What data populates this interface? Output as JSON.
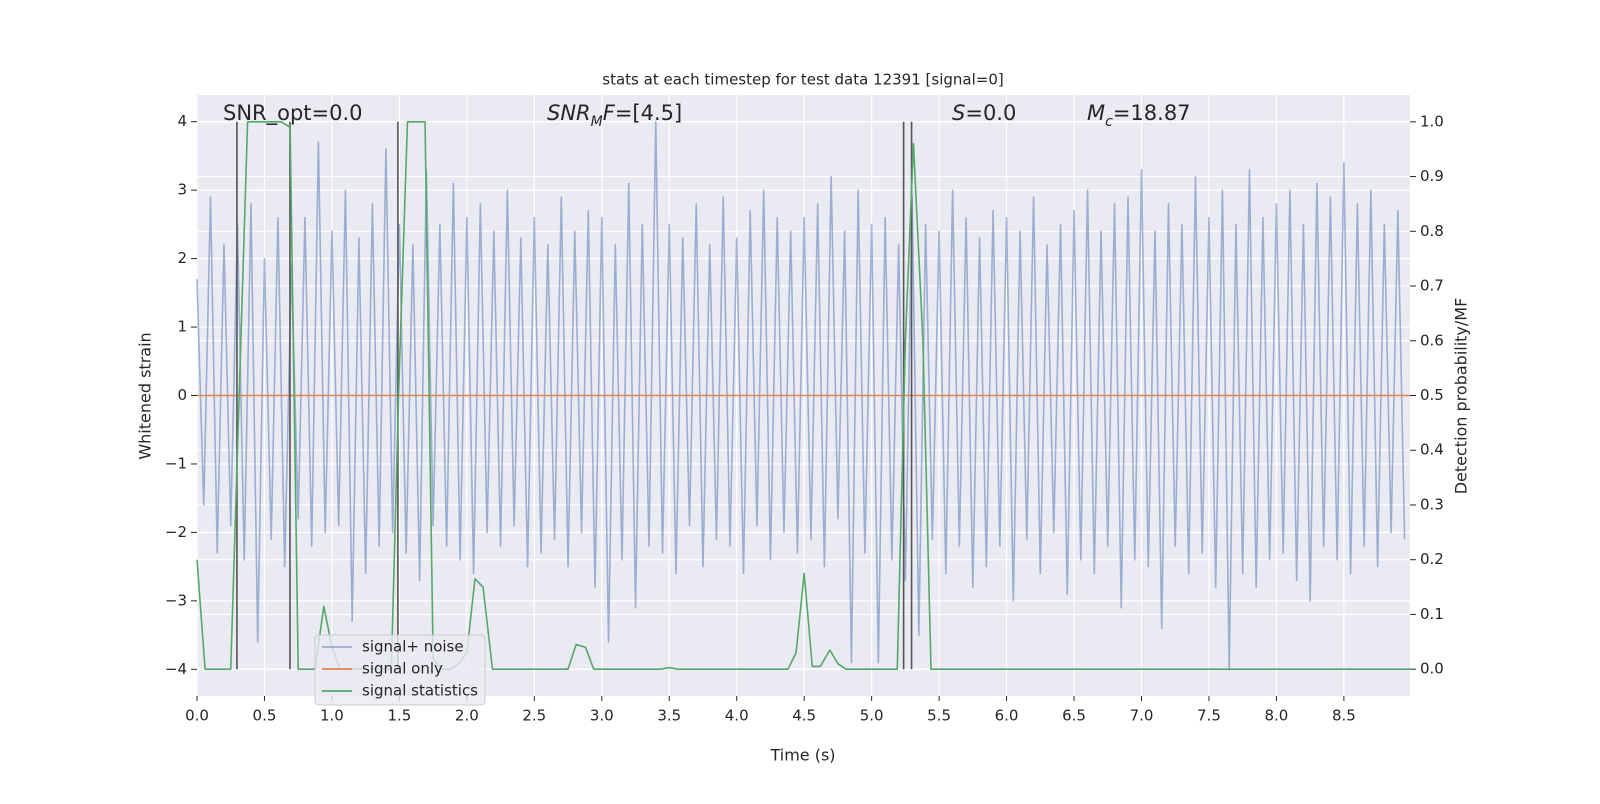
{
  "chart_data": {
    "type": "line",
    "title": "stats at each timestep for test data 12391 [signal=0]",
    "xlabel": "Time (s)",
    "ylabel": "Whitened strain",
    "y2label": "Detection probability/MF",
    "xlim": [
      0,
      8.99
    ],
    "ylim": [
      -4.39,
      4.39
    ],
    "y2lim": [
      -0.049,
      1.049
    ],
    "xticks": [
      {
        "value": 0,
        "label": "0.0"
      },
      0.5,
      {
        "value": 1,
        "label": "1.0"
      },
      1.5,
      {
        "value": 2,
        "label": "2.0"
      },
      2.5,
      {
        "value": 3,
        "label": "3.0"
      },
      3.5,
      {
        "value": 4,
        "label": "4.0"
      },
      4.5,
      {
        "value": 5,
        "label": "5.0"
      },
      5.5,
      {
        "value": 6,
        "label": "6.0"
      },
      6.5,
      {
        "value": 7,
        "label": "7.0"
      },
      7.5,
      {
        "value": 8,
        "label": "8.0"
      },
      8.5
    ],
    "yticks": [
      {
        "value": -4,
        "label": "−4"
      },
      {
        "value": -3,
        "label": "−3"
      },
      {
        "value": -2,
        "label": "−2"
      },
      {
        "value": -1,
        "label": "−1"
      },
      0,
      1,
      2,
      3,
      4
    ],
    "y2ticks": [
      {
        "value": 0,
        "label": "0.0"
      },
      0.1,
      0.2,
      0.3,
      0.4,
      0.5,
      0.6,
      0.7,
      0.8,
      0.9,
      {
        "value": 1,
        "label": "1.0"
      }
    ],
    "grid": true,
    "series": [
      {
        "name": "signal+ noise",
        "color": "#4c72b0",
        "alpha": 0.5,
        "x": [
          0,
          0.05,
          0.1,
          0.15,
          0.2,
          0.25,
          0.3,
          0.35,
          0.4,
          0.45,
          0.5,
          0.55,
          0.6,
          0.65,
          0.7,
          0.75,
          0.8,
          0.85,
          0.9,
          0.95,
          1,
          1.05,
          1.1,
          1.15,
          1.2,
          1.25,
          1.3,
          1.35,
          1.4,
          1.45,
          1.5,
          1.55,
          1.6,
          1.65,
          1.7,
          1.75,
          1.8,
          1.85,
          1.9,
          1.95,
          2,
          2.05,
          2.1,
          2.15,
          2.2,
          2.25,
          2.3,
          2.35,
          2.4,
          2.45,
          2.5,
          2.55,
          2.6,
          2.65,
          2.7,
          2.75,
          2.8,
          2.85,
          2.9,
          2.95,
          3,
          3.05,
          3.1,
          3.15,
          3.2,
          3.25,
          3.3,
          3.35,
          3.4,
          3.45,
          3.5,
          3.55,
          3.6,
          3.65,
          3.7,
          3.75,
          3.8,
          3.85,
          3.9,
          3.95,
          4,
          4.05,
          4.1,
          4.15,
          4.2,
          4.25,
          4.3,
          4.35,
          4.4,
          4.45,
          4.5,
          4.55,
          4.6,
          4.65,
          4.7,
          4.75,
          4.8,
          4.85,
          4.9,
          4.95,
          5,
          5.05,
          5.1,
          5.15,
          5.2,
          5.25,
          5.3,
          5.35,
          5.4,
          5.45,
          5.5,
          5.55,
          5.6,
          5.65,
          5.7,
          5.75,
          5.8,
          5.85,
          5.9,
          5.95,
          6,
          6.05,
          6.1,
          6.15,
          6.2,
          6.25,
          6.3,
          6.35,
          6.4,
          6.45,
          6.5,
          6.55,
          6.6,
          6.65,
          6.7,
          6.75,
          6.8,
          6.85,
          6.9,
          6.95,
          7,
          7.05,
          7.1,
          7.15,
          7.2,
          7.25,
          7.3,
          7.35,
          7.4,
          7.45,
          7.5,
          7.55,
          7.6,
          7.65,
          7.7,
          7.75,
          7.8,
          7.85,
          7.9,
          7.95,
          8,
          8.05,
          8.1,
          8.15,
          8.2,
          8.25,
          8.3,
          8.35,
          8.4,
          8.45,
          8.5,
          8.55,
          8.6,
          8.65,
          8.7,
          8.75,
          8.8,
          8.85,
          8.9,
          8.95
        ],
        "values": [
          1.7,
          -1.6,
          2.9,
          -2.3,
          2.2,
          -1.9,
          2.5,
          -2.4,
          2.8,
          -3.6,
          2.0,
          -2.1,
          2.6,
          -2.5,
          1.9,
          -1.8,
          2.6,
          -2.2,
          3.7,
          -2.0,
          2.4,
          -1.9,
          3.0,
          -3.3,
          2.3,
          -2.6,
          2.8,
          -2.2,
          3.6,
          -2.0,
          2.5,
          -2.3,
          2.2,
          -2.7,
          3.3,
          -1.9,
          2.5,
          -2.2,
          3.1,
          -2.4,
          2.6,
          -2.6,
          2.8,
          -2.0,
          2.4,
          -2.2,
          3.0,
          -1.9,
          2.3,
          -2.5,
          2.6,
          -2.3,
          2.2,
          -2.1,
          2.9,
          -2.5,
          2.4,
          -2.0,
          2.7,
          -2.8,
          2.6,
          -3.6,
          2.2,
          -2.4,
          3.1,
          -3.1,
          2.5,
          -2.2,
          4.0,
          -2.3,
          2.5,
          -2.6,
          2.3,
          -1.9,
          2.8,
          -2.5,
          2.2,
          -2.1,
          2.9,
          -2.2,
          2.3,
          -2.6,
          2.7,
          -1.9,
          3.0,
          -2.4,
          2.6,
          -2.0,
          2.4,
          -2.3,
          2.6,
          -2.1,
          2.8,
          -2.5,
          3.2,
          -1.8,
          2.4,
          -3.9,
          3.0,
          -2.3,
          2.5,
          -3.9,
          2.6,
          -2.4,
          2.2,
          -2.7,
          2.9,
          -3.5,
          2.5,
          -2.1,
          2.4,
          -2.6,
          3.0,
          -2.2,
          2.6,
          -2.8,
          2.3,
          -2.5,
          2.7,
          -2.2,
          2.6,
          -3.0,
          2.4,
          -2.1,
          2.9,
          -2.6,
          2.2,
          -2.0,
          2.5,
          -2.9,
          2.7,
          -2.4,
          3.0,
          -2.6,
          2.4,
          -2.2,
          2.8,
          -3.1,
          2.9,
          -2.4,
          3.3,
          -2.5,
          2.4,
          -3.4,
          2.8,
          -2.2,
          2.5,
          -2.6,
          3.2,
          -2.3,
          2.6,
          -2.8,
          3.0,
          -4.0,
          2.5,
          -2.6,
          3.3,
          -2.8,
          2.6,
          -2.4,
          2.8,
          -2.3,
          3.0,
          -2.7,
          2.5,
          -3.0,
          3.1,
          -2.2,
          2.9,
          -2.4,
          3.4,
          -2.6,
          2.8,
          -2.2,
          3.0,
          -2.5,
          2.5,
          -2.0,
          2.7,
          -2.1
        ]
      },
      {
        "name": "signal only",
        "color": "#dd8452",
        "x": [
          0,
          8.99
        ],
        "values": [
          0,
          0
        ]
      },
      {
        "name": "signal statistics",
        "color": "#55a868",
        "axis": "y2",
        "x": [
          0,
          0.06,
          0.25,
          0.375,
          0.625,
          0.69,
          0.75,
          0.875,
          0.94,
          1.0,
          1.06,
          1.44,
          1.5,
          1.56,
          1.69,
          1.75,
          1.81,
          1.88,
          1.94,
          2.0,
          2.06,
          2.12,
          2.19,
          2.75,
          2.81,
          2.88,
          2.94,
          3.44,
          3.5,
          3.56,
          4.38,
          4.44,
          4.5,
          4.56,
          4.62,
          4.69,
          4.75,
          4.81,
          5.19,
          5.25,
          5.31,
          5.38,
          5.44,
          8.99
        ],
        "values": [
          0.2,
          0,
          0,
          1.0,
          1.0,
          0.99,
          0,
          0,
          0.115,
          0.04,
          0,
          0,
          0.55,
          1.0,
          1.0,
          0.02,
          0,
          0,
          0.01,
          0.03,
          0.165,
          0.15,
          0,
          0,
          0.045,
          0.04,
          0,
          0,
          0.003,
          0,
          0,
          0.03,
          0.175,
          0.005,
          0.005,
          0.035,
          0.01,
          0,
          0,
          0.6,
          0.96,
          0.6,
          0,
          0
        ]
      }
    ],
    "vlines": {
      "x": [
        0.296,
        0.689,
        1.489,
        5.237,
        5.296
      ],
      "ymin": -4,
      "ymax": 4,
      "color": "#555555"
    },
    "annotations": [
      [
        {
          "text": "SNR_opt=0.0"
        }
      ],
      [
        {
          "text": "SNR",
          "style": "italic"
        },
        {
          "text": "M",
          "style": "italic",
          "sub": true
        },
        {
          "text": "F",
          "style": "italic"
        },
        {
          "text": "=[4.5]"
        }
      ],
      [
        {
          "text": "S",
          "style": "italic"
        },
        {
          "text": "=0.0"
        }
      ],
      [
        {
          "text": "M",
          "style": "italic"
        },
        {
          "text": "c",
          "style": "italic",
          "sub": true
        },
        {
          "text": "=18.87"
        }
      ]
    ]
  }
}
